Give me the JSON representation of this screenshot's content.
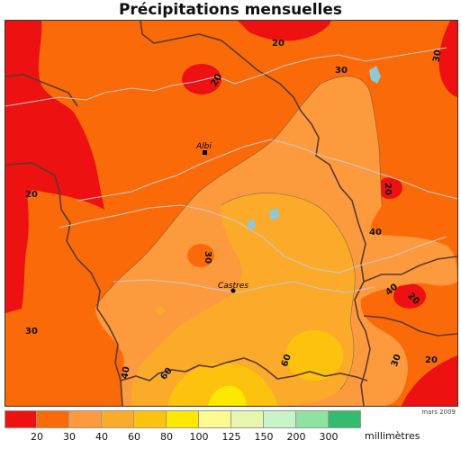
{
  "title": "Précipitations mensuelles",
  "date_label": "mars 2009",
  "unit_label": "millimètres",
  "cities": [
    {
      "name": "Albi"
    },
    {
      "name": "Castres"
    }
  ],
  "contour_labels": [
    "20",
    "30",
    "20",
    "30",
    "20",
    "20",
    "30",
    "40",
    "30",
    "20",
    "60",
    "40",
    "60",
    "30",
    "20",
    "40"
  ],
  "legend": {
    "colors": [
      "#ee1111",
      "#fb6a08",
      "#fd9a3e",
      "#fcaa2a",
      "#fdc20d",
      "#fde800",
      "#fdfa90",
      "#e7f7b0",
      "#c9f3c8",
      "#8fe3a0",
      "#33bb6e"
    ],
    "ticks": [
      "20",
      "30",
      "40",
      "60",
      "80",
      "100",
      "125",
      "150",
      "200",
      "300"
    ]
  }
}
